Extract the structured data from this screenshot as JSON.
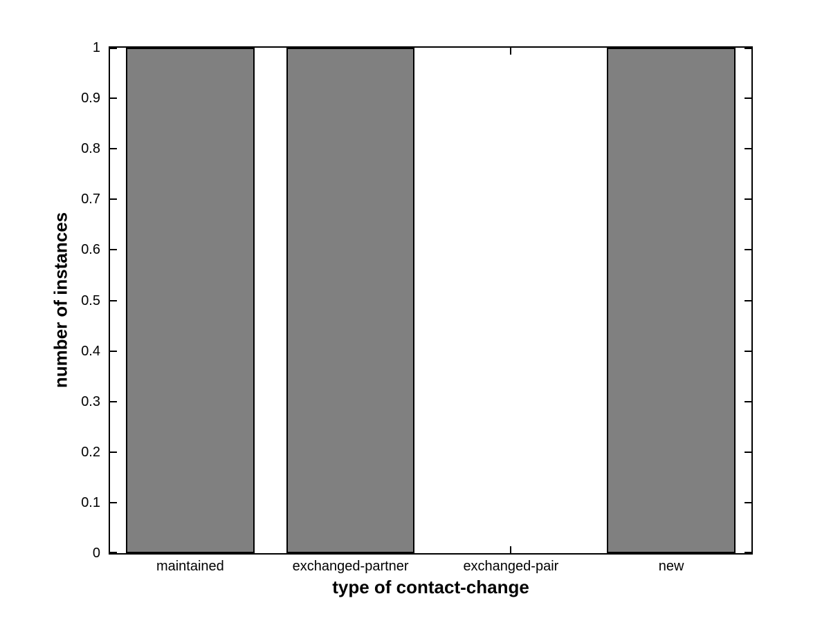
{
  "chart_data": {
    "type": "bar",
    "categories": [
      "maintained",
      "exchanged-partner",
      "exchanged-pair",
      "new"
    ],
    "values": [
      1,
      1,
      0,
      1
    ],
    "xlabel": "type of contact-change",
    "ylabel": "number of instances",
    "ylim": [
      0,
      1
    ],
    "yticks": [
      0,
      0.1,
      0.2,
      0.3,
      0.4,
      0.5,
      0.6,
      0.7,
      0.8,
      0.9,
      1
    ],
    "ytick_labels": [
      "0",
      "0.1",
      "0.2",
      "0.3",
      "0.4",
      "0.5",
      "0.6",
      "0.7",
      "0.8",
      "0.9",
      "1"
    ],
    "bar_width_fraction": 0.8,
    "bar_color": "#808080",
    "edge_color": "#000000",
    "background_color": "#ffffff",
    "grid": false,
    "legend": null,
    "tick_direction": "in",
    "box": true
  }
}
